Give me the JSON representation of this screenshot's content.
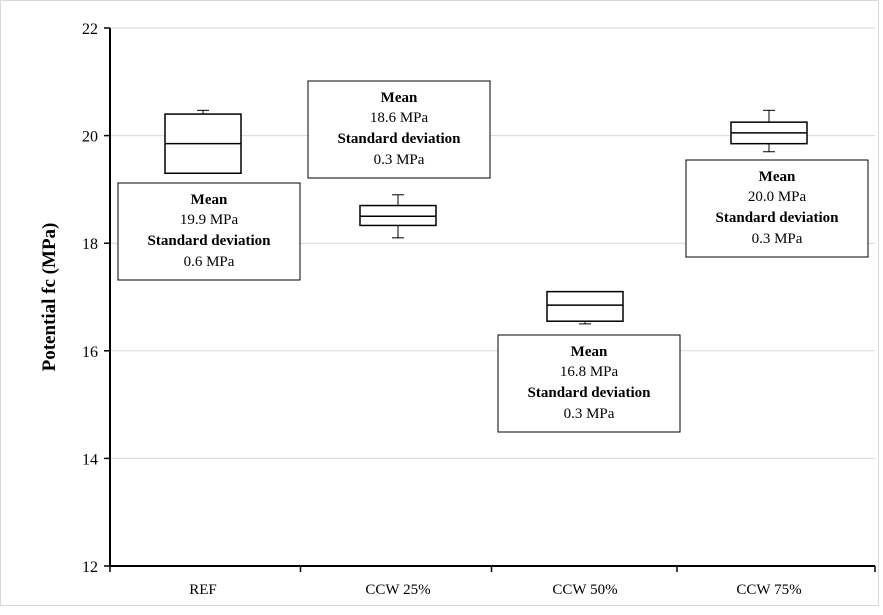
{
  "chart_data": {
    "type": "box",
    "ylabel": "Potential fc (MPa)",
    "xlabel": "",
    "ylim": [
      12,
      22
    ],
    "yticks": [
      12,
      14,
      16,
      18,
      20,
      22
    ],
    "grid": "horizontal",
    "categories": [
      "REF",
      "CCW 25%",
      "CCW 50%",
      "CCW 75%"
    ],
    "boxes": [
      {
        "min": 19.3,
        "q1": 19.3,
        "median": 19.85,
        "q3": 20.4,
        "max": 20.47
      },
      {
        "min": 18.1,
        "q1": 18.33,
        "median": 18.5,
        "q3": 18.7,
        "max": 18.9
      },
      {
        "min": 16.5,
        "q1": 16.55,
        "median": 16.85,
        "q3": 17.1,
        "max": 17.1
      },
      {
        "min": 19.7,
        "q1": 19.85,
        "median": 20.05,
        "q3": 20.25,
        "max": 20.47
      }
    ],
    "annotations": [
      {
        "mean_label": "Mean",
        "mean_value": "19.9 MPa",
        "sd_label": "Standard deviation",
        "sd_value": "0.6 MPa"
      },
      {
        "mean_label": "Mean",
        "mean_value": "18.6 MPa",
        "sd_label": "Standard deviation",
        "sd_value": "0.3 MPa"
      },
      {
        "mean_label": "Mean",
        "mean_value": "16.8 MPa",
        "sd_label": "Standard deviation",
        "sd_value": "0.3 MPa"
      },
      {
        "mean_label": "Mean",
        "mean_value": "20.0 MPa",
        "sd_label": "Standard deviation",
        "sd_value": "0.3 MPa"
      }
    ]
  }
}
